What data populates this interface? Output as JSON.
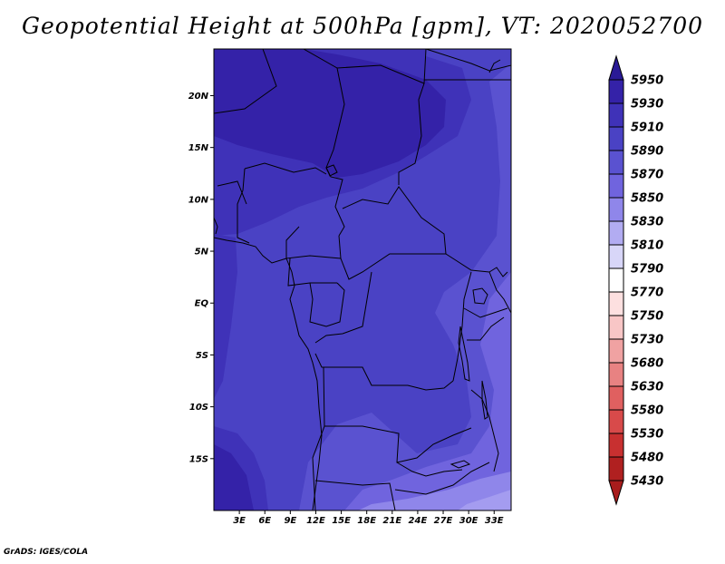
{
  "title": "Geopotential Height at 500hPa [gpm], VT: 2020052700",
  "credit": "GrADS: IGES/COLA",
  "map": {
    "lon_labels": [
      "3E",
      "6E",
      "9E",
      "12E",
      "15E",
      "18E",
      "21E",
      "24E",
      "27E",
      "30E",
      "33E"
    ],
    "lat_labels": [
      "20N",
      "15N",
      "10N",
      "5N",
      "EQ",
      "5S",
      "10S",
      "15S"
    ],
    "lon_range": [
      0,
      35
    ],
    "lat_range": [
      -20,
      24.5
    ],
    "shading_levels": [
      "5910-5930",
      "5890-5910",
      "5870-5890",
      "5850-5870",
      "5830-5850"
    ]
  },
  "colorbar": {
    "levels": [
      "5950",
      "5930",
      "5910",
      "5890",
      "5870",
      "5850",
      "5830",
      "5810",
      "5790",
      "5770",
      "5750",
      "5730",
      "5680",
      "5630",
      "5580",
      "5530",
      "5480",
      "5430"
    ],
    "colors": [
      "#2a1a96",
      "#3422a8",
      "#3f32b8",
      "#4a42c4",
      "#5a52d0",
      "#7064de",
      "#8f86ea",
      "#b2acf2",
      "#d8d6f8",
      "#ffffff",
      "#fde0e0",
      "#f8c6c6",
      "#f0a2a2",
      "#e88282",
      "#e06060",
      "#d84a4a",
      "#c83030",
      "#b02020"
    ],
    "top_arrow_color": "#2a1a96",
    "bottom_arrow_color": "#a81c1c"
  }
}
